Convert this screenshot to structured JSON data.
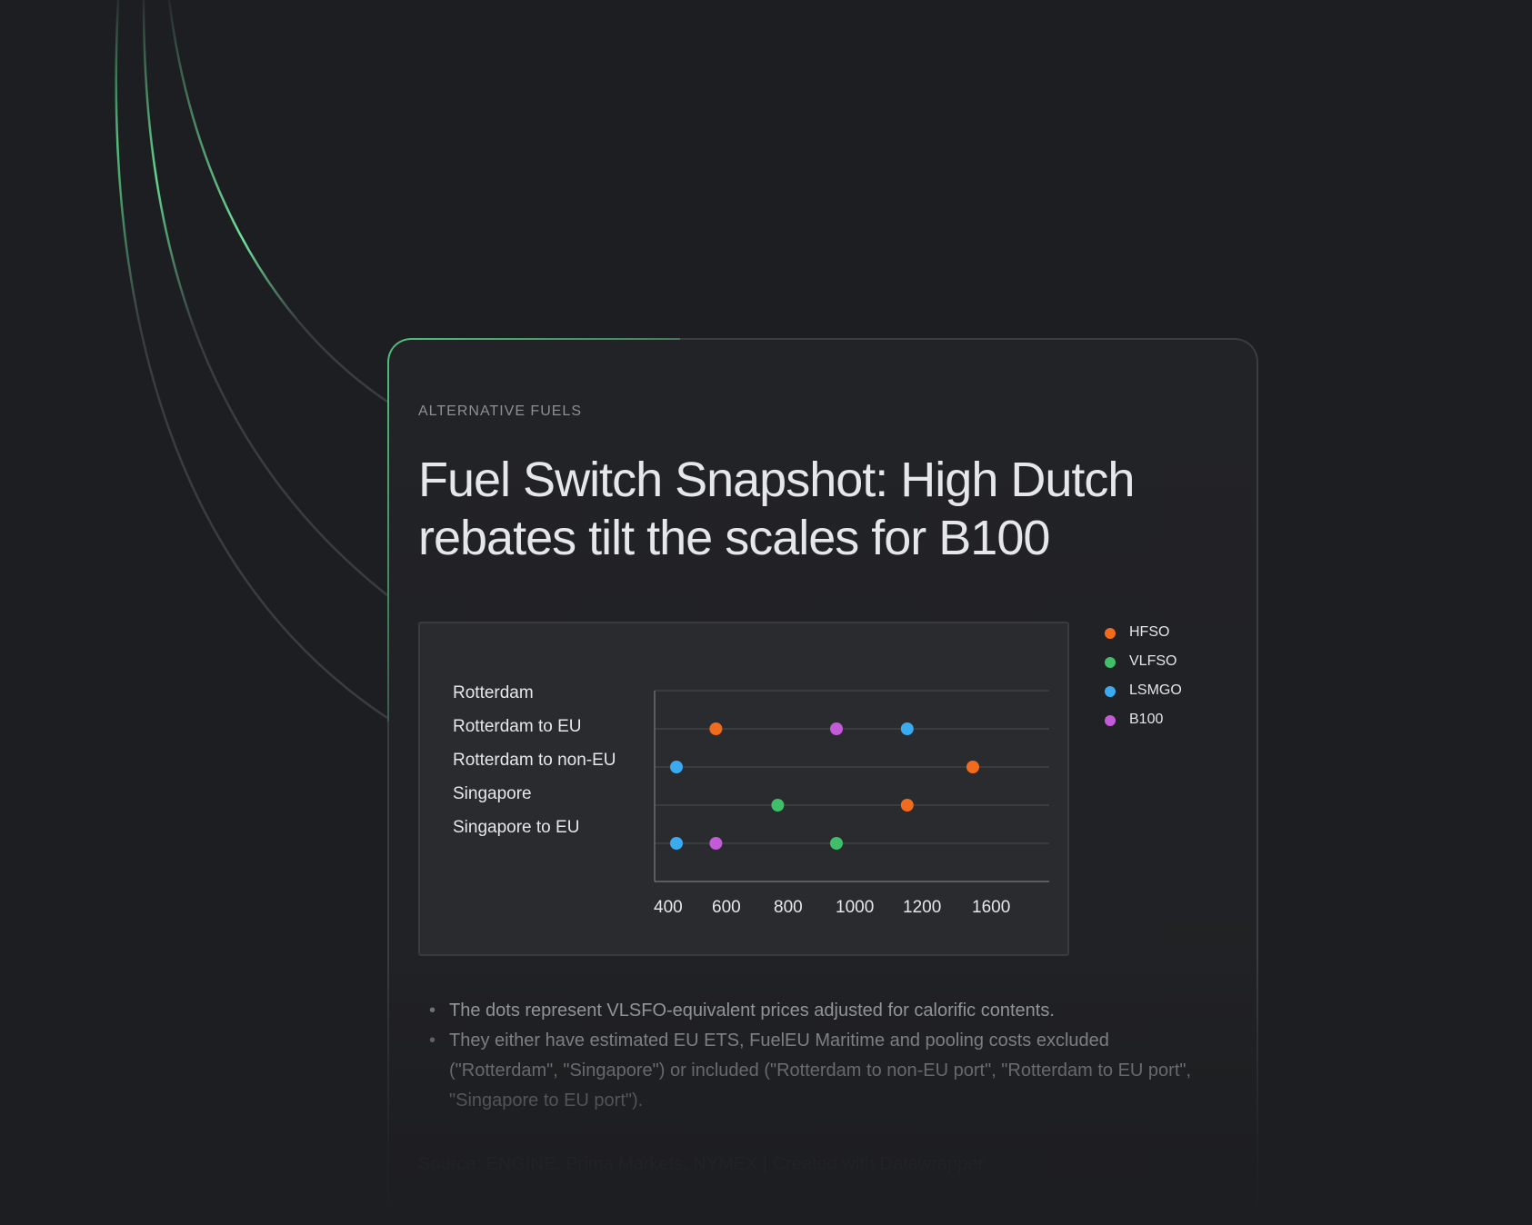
{
  "eyebrow": "ALTERNATIVE FUELS",
  "title": "Fuel Switch Snapshot: High Dutch rebates tilt the scales for B100",
  "colors": {
    "background": "#1d1e21",
    "card": "#222326",
    "accent": "#4ec27a",
    "hfso": "#f26b1d",
    "vlfso": "#3fbf6a",
    "lsmgo": "#3aabf0",
    "b100": "#c35ad8"
  },
  "chart_data": {
    "type": "scatter",
    "title": "",
    "xlabel": "",
    "ylabel": "",
    "categories": [
      "Rotterdam",
      "Rotterdam to EU",
      "Rotterdam to non-EU",
      "Singapore",
      "Singapore to EU"
    ],
    "x_ticks": [
      400,
      600,
      800,
      1000,
      1200,
      1600
    ],
    "grid": true,
    "legend_position": "right",
    "series": [
      {
        "name": "HFSO",
        "color": "#f26b1d",
        "values": [
          null,
          610,
          1620,
          1220,
          null
        ]
      },
      {
        "name": "VLFSO",
        "color": "#3fbf6a",
        "values": [
          null,
          null,
          null,
          810,
          1000
        ]
      },
      {
        "name": "LSMGO",
        "color": "#3aabf0",
        "values": [
          null,
          1220,
          475,
          null,
          475
        ]
      },
      {
        "name": "B100",
        "color": "#c35ad8",
        "values": [
          null,
          1000,
          null,
          null,
          610
        ]
      }
    ]
  },
  "notes": [
    "The dots represent VLSFO-equivalent prices adjusted for calorific contents.",
    "They either have estimated EU ETS, FuelEU Maritime and pooling costs excluded (\"Rotterdam\", \"Singapore\") or included (\"Rotterdam to non-EU port\", \"Rotterdam to EU port\", \"Singapore to EU port\")."
  ],
  "source": "Source: ENGINE, Prima Markets, NYMEX | Created with Datawrapper"
}
